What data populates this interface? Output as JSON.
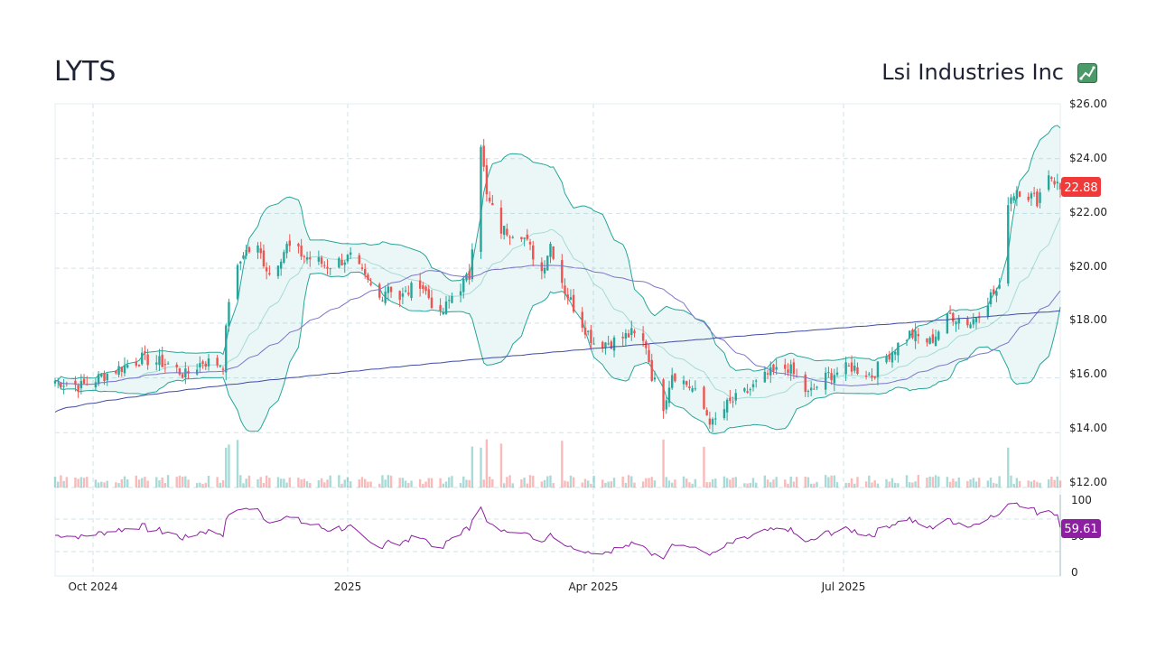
{
  "header": {
    "ticker": "LYTS",
    "company": "Lsi Industries Inc",
    "logo_icon": "chart-logo-icon"
  },
  "colors": {
    "up": "#26a69a",
    "down": "#ef5350",
    "band": "#26a69a",
    "sma50": "#7e73c9",
    "sma200": "#3f4ba6",
    "rsi": "#8e1fa3",
    "last_badge": "#f03a3a",
    "rsi_badge": "#8e1fa3"
  },
  "price_axis": {
    "ticks": [
      "$26.00",
      "$24.00",
      "$22.00",
      "$20.00",
      "$18.00",
      "$16.00",
      "$14.00",
      "$12.00"
    ]
  },
  "rsi_axis": {
    "ticks": [
      "100",
      "50",
      "0"
    ]
  },
  "x_axis": {
    "ticks": [
      "Oct 2024",
      "2025",
      "Apr 2025",
      "Jul 2025"
    ]
  },
  "badges": {
    "last_price": "22.88",
    "rsi_value": "59.61"
  },
  "chart_data": {
    "type": "candlestick",
    "x_range": [
      "2024-09-16",
      "2025-08-29"
    ],
    "price_ylim": [
      12,
      26
    ],
    "rsi_ylim": [
      0,
      100
    ],
    "close_path": [
      [
        "2024-09-16",
        15.9
      ],
      [
        "2024-09-25",
        15.7
      ],
      [
        "2024-10-07",
        16.3
      ],
      [
        "2024-10-16",
        16.7
      ],
      [
        "2024-10-25",
        16.5
      ],
      [
        "2024-10-31",
        16.1
      ],
      [
        "2024-11-06",
        16.6
      ],
      [
        "2024-11-13",
        16.5
      ],
      [
        "2024-11-15",
        18.9
      ],
      [
        "2024-11-20",
        20.6
      ],
      [
        "2024-11-25",
        20.7
      ],
      [
        "2024-11-29",
        19.8
      ],
      [
        "2024-12-05",
        20.8
      ],
      [
        "2024-12-12",
        20.4
      ],
      [
        "2024-12-19",
        20.1
      ],
      [
        "2024-12-27",
        20.4
      ],
      [
        "2025-01-01",
        19.6
      ],
      [
        "2025-01-06",
        18.9
      ],
      [
        "2025-01-09",
        19.4
      ],
      [
        "2025-01-13",
        18.9
      ],
      [
        "2025-01-20",
        19.5
      ],
      [
        "2025-01-27",
        18.2
      ],
      [
        "2025-01-31",
        19.0
      ],
      [
        "2025-02-06",
        19.7
      ],
      [
        "2025-02-10",
        24.6
      ],
      [
        "2025-02-12",
        22.6
      ],
      [
        "2025-02-17",
        21.4
      ],
      [
        "2025-02-24",
        21.3
      ],
      [
        "2025-03-03",
        19.9
      ],
      [
        "2025-03-06",
        20.9
      ],
      [
        "2025-03-11",
        19.2
      ],
      [
        "2025-03-17",
        18.0
      ],
      [
        "2025-03-21",
        17.3
      ],
      [
        "2025-03-27",
        17.3
      ],
      [
        "2025-04-03",
        17.6
      ],
      [
        "2025-04-08",
        17.2
      ],
      [
        "2025-04-10",
        16.1
      ],
      [
        "2025-04-14",
        15.0
      ],
      [
        "2025-04-17",
        16.2
      ],
      [
        "2025-04-24",
        15.6
      ],
      [
        "2025-05-01",
        14.3
      ],
      [
        "2025-05-06",
        15.0
      ],
      [
        "2025-05-13",
        15.5
      ],
      [
        "2025-05-20",
        16.1
      ],
      [
        "2025-05-27",
        16.4
      ],
      [
        "2025-06-03",
        15.4
      ],
      [
        "2025-06-10",
        16.1
      ],
      [
        "2025-06-18",
        16.4
      ],
      [
        "2025-06-25",
        16.1
      ],
      [
        "2025-07-01",
        16.9
      ],
      [
        "2025-07-08",
        17.6
      ],
      [
        "2025-07-15",
        17.3
      ],
      [
        "2025-07-22",
        18.3
      ],
      [
        "2025-07-29",
        18.0
      ],
      [
        "2025-08-05",
        19.0
      ],
      [
        "2025-08-08",
        19.2
      ],
      [
        "2025-08-11",
        22.5
      ],
      [
        "2025-08-14",
        22.9
      ],
      [
        "2025-08-21",
        22.5
      ],
      [
        "2025-08-25",
        23.5
      ],
      [
        "2025-08-29",
        22.88
      ]
    ],
    "series": [
      {
        "name": "Close"
      },
      {
        "name": "SMA 50"
      },
      {
        "name": "SMA 200"
      },
      {
        "name": "Bollinger Bands (20, 2)"
      },
      {
        "name": "Volume"
      },
      {
        "name": "RSI (14)"
      }
    ],
    "last_close": 22.88,
    "last_rsi": 59.61,
    "grid": true
  }
}
